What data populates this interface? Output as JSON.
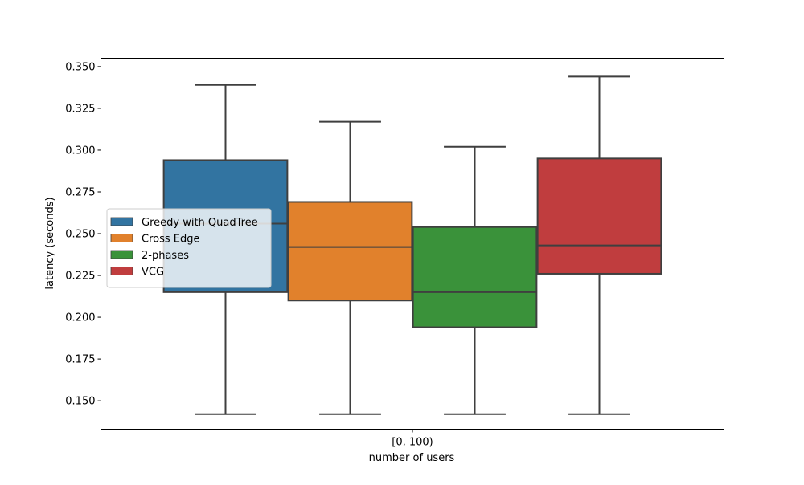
{
  "chart_data": {
    "type": "box",
    "categories": [
      "[0, 100)"
    ],
    "xlabel": "number of users",
    "ylabel": "latency (seconds)",
    "ylim": [
      0.133,
      0.355
    ],
    "yticks": [
      0.15,
      0.175,
      0.2,
      0.225,
      0.25,
      0.275,
      0.3,
      0.325,
      0.35
    ],
    "yticklabels": [
      "0.150",
      "0.175",
      "0.200",
      "0.225",
      "0.250",
      "0.275",
      "0.300",
      "0.325",
      "0.350"
    ],
    "grid": false,
    "legend": {
      "placement": "center-left"
    },
    "series": [
      {
        "name": "Greedy with QuadTree",
        "color": "#3274a1",
        "whisker_low": 0.142,
        "q1": 0.215,
        "median": 0.256,
        "q3": 0.294,
        "whisker_high": 0.339
      },
      {
        "name": "Cross Edge",
        "color": "#e1812c",
        "whisker_low": 0.142,
        "q1": 0.21,
        "median": 0.242,
        "q3": 0.269,
        "whisker_high": 0.317
      },
      {
        "name": "2-phases",
        "color": "#3a923a",
        "whisker_low": 0.142,
        "q1": 0.194,
        "median": 0.215,
        "q3": 0.254,
        "whisker_high": 0.302
      },
      {
        "name": "VCG",
        "color": "#c03d3e",
        "whisker_low": 0.142,
        "q1": 0.226,
        "median": 0.243,
        "q3": 0.295,
        "whisker_high": 0.344
      }
    ]
  }
}
